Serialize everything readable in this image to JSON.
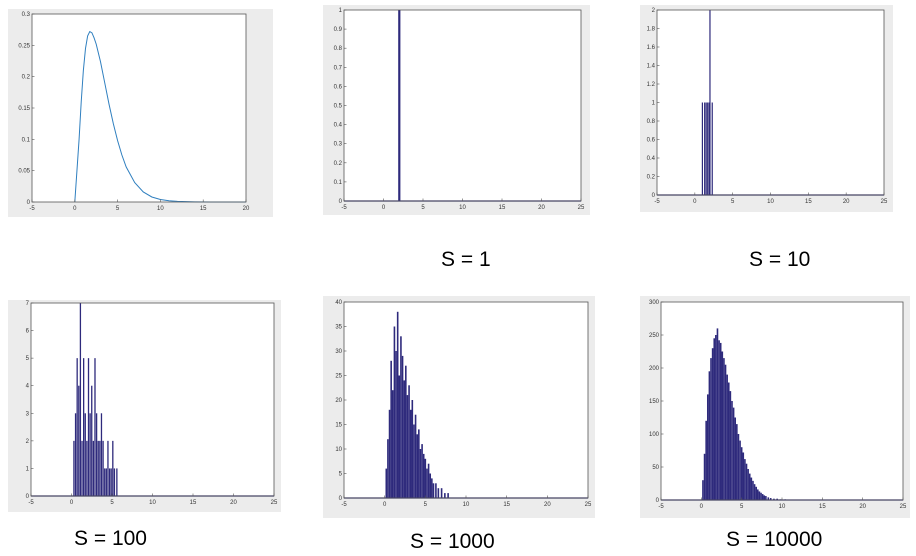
{
  "colors": {
    "panel_background": "#ececec",
    "axes_background": "#ffffff",
    "axis_frame": "#555555",
    "pdf_line": "#2f7fbf",
    "histogram": "#2e2a7c"
  },
  "chart_data": [
    {
      "type": "line",
      "label": "",
      "xlim": [
        -5,
        20
      ],
      "ylim": [
        0,
        0.3
      ],
      "xticks": [
        -5,
        0,
        5,
        10,
        15,
        20
      ],
      "yticks": [
        0,
        0.05,
        0.1,
        0.15,
        0.2,
        0.25,
        0.3
      ],
      "series": [
        {
          "x": [
            0,
            0.25,
            0.5,
            0.75,
            1,
            1.25,
            1.5,
            1.75,
            2,
            2.25,
            2.5,
            3,
            3.5,
            4,
            4.5,
            5,
            5.5,
            6,
            7,
            8,
            9,
            10,
            11,
            12,
            14,
            16,
            18,
            20
          ],
          "y": [
            0,
            0.05,
            0.1,
            0.16,
            0.21,
            0.245,
            0.265,
            0.272,
            0.27,
            0.262,
            0.252,
            0.224,
            0.19,
            0.156,
            0.125,
            0.098,
            0.075,
            0.056,
            0.031,
            0.016,
            0.008,
            0.004,
            0.002,
            0.001,
            0.0002,
            0,
            0,
            0
          ]
        }
      ]
    },
    {
      "type": "bar",
      "label": "S = 1",
      "xlim": [
        -5,
        25
      ],
      "ylim": [
        0,
        1
      ],
      "xticks": [
        -5,
        0,
        5,
        10,
        15,
        20,
        25
      ],
      "yticks": [
        0,
        0.1,
        0.2,
        0.3,
        0.4,
        0.5,
        0.6,
        0.7,
        0.8,
        0.9,
        1
      ],
      "x": [
        2.0
      ],
      "values": [
        1
      ]
    },
    {
      "type": "bar",
      "label": "S = 10",
      "xlim": [
        -5,
        25
      ],
      "ylim": [
        0,
        2
      ],
      "xticks": [
        -5,
        0,
        5,
        10,
        15,
        20,
        25
      ],
      "yticks": [
        0,
        0.2,
        0.4,
        0.6,
        0.8,
        1,
        1.2,
        1.4,
        1.6,
        1.8,
        2
      ],
      "x": [
        1.0,
        1.3,
        1.5,
        1.7,
        1.9,
        2.0,
        2.3
      ],
      "values": [
        1,
        1,
        1,
        1,
        1,
        2,
        1
      ]
    },
    {
      "type": "bar",
      "label": "S = 100",
      "xlim": [
        -5,
        25
      ],
      "ylim": [
        0,
        7
      ],
      "xticks": [
        -5,
        0,
        5,
        10,
        15,
        20,
        25
      ],
      "yticks": [
        0,
        1,
        2,
        3,
        4,
        5,
        6,
        7
      ],
      "x": [
        0.3,
        0.5,
        0.7,
        0.9,
        1.1,
        1.3,
        1.5,
        1.7,
        1.9,
        2.1,
        2.3,
        2.5,
        2.7,
        2.9,
        3.1,
        3.3,
        3.5,
        3.7,
        3.9,
        4.1,
        4.3,
        4.5,
        4.7,
        4.9,
        5.1,
        5.3,
        5.6
      ],
      "values": [
        2,
        3,
        5,
        4,
        7,
        2,
        5,
        3,
        2,
        5,
        3,
        4,
        2,
        5,
        3,
        2,
        2,
        3,
        2,
        1,
        1,
        2,
        1,
        1,
        2,
        1,
        1
      ]
    },
    {
      "type": "bar",
      "label": "S = 1000",
      "xlim": [
        -5,
        25
      ],
      "ylim": [
        0,
        40
      ],
      "xticks": [
        -5,
        0,
        5,
        10,
        15,
        20,
        25
      ],
      "yticks": [
        0,
        5,
        10,
        15,
        20,
        25,
        30,
        35,
        40
      ],
      "x": [
        0.2,
        0.4,
        0.6,
        0.8,
        1.0,
        1.2,
        1.4,
        1.6,
        1.8,
        2.0,
        2.2,
        2.4,
        2.6,
        2.8,
        3.0,
        3.2,
        3.4,
        3.6,
        3.8,
        4.0,
        4.2,
        4.4,
        4.6,
        4.8,
        5.0,
        5.2,
        5.4,
        5.6,
        5.8,
        6.0,
        6.3,
        6.6,
        7.0,
        7.4,
        7.8
      ],
      "values": [
        6,
        12,
        18,
        28,
        22,
        35,
        30,
        38,
        25,
        33,
        29,
        24,
        27,
        21,
        23,
        18,
        20,
        15,
        17,
        13,
        14,
        10,
        11,
        9,
        8,
        6,
        7,
        5,
        4,
        3,
        3,
        2,
        2,
        1,
        1
      ]
    },
    {
      "type": "bar",
      "label": "S = 10000",
      "xlim": [
        -5,
        25
      ],
      "ylim": [
        0,
        300
      ],
      "xticks": [
        -5,
        0,
        5,
        10,
        15,
        20,
        25
      ],
      "yticks": [
        0,
        50,
        100,
        150,
        200,
        250,
        300
      ],
      "x": [
        0.2,
        0.4,
        0.6,
        0.8,
        1.0,
        1.2,
        1.4,
        1.6,
        1.8,
        2.0,
        2.2,
        2.4,
        2.6,
        2.8,
        3.0,
        3.2,
        3.4,
        3.6,
        3.8,
        4.0,
        4.2,
        4.4,
        4.6,
        4.8,
        5.0,
        5.2,
        5.4,
        5.6,
        5.8,
        6.0,
        6.2,
        6.4,
        6.6,
        6.8,
        7.0,
        7.2,
        7.4,
        7.6,
        7.8,
        8.0,
        8.3,
        8.6,
        9.0,
        9.4,
        9.8,
        10.4
      ],
      "values": [
        30,
        70,
        120,
        160,
        195,
        215,
        230,
        245,
        250,
        260,
        242,
        238,
        225,
        215,
        205,
        190,
        178,
        165,
        150,
        140,
        125,
        115,
        100,
        90,
        80,
        72,
        62,
        55,
        47,
        40,
        34,
        29,
        24,
        20,
        16,
        13,
        11,
        9,
        7,
        6,
        4,
        3,
        2,
        2,
        1,
        1
      ]
    }
  ]
}
